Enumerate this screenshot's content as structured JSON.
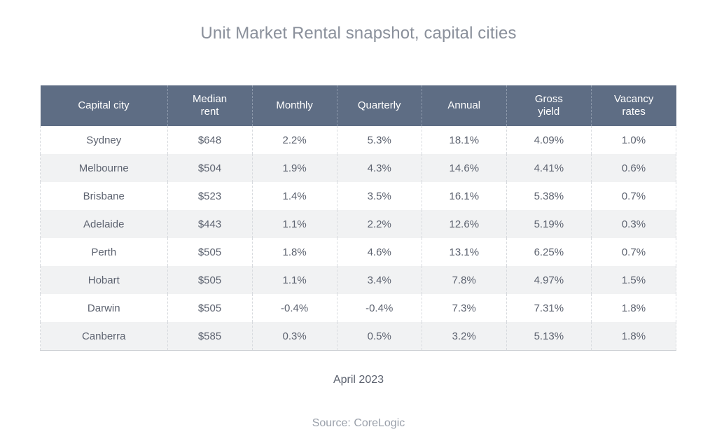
{
  "chart_data": {
    "type": "table",
    "title": "Unit Market Rental snapshot, capital cities",
    "columns": [
      "Capital city",
      "Median\nrent",
      "Monthly",
      "Quarterly",
      "Annual",
      "Gross\nyield",
      "Vacancy\nrates"
    ],
    "rows": [
      [
        "Sydney",
        "$648",
        "2.2%",
        "5.3%",
        "18.1%",
        "4.09%",
        "1.0%"
      ],
      [
        "Melbourne",
        "$504",
        "1.9%",
        "4.3%",
        "14.6%",
        "4.41%",
        "0.6%"
      ],
      [
        "Brisbane",
        "$523",
        "1.4%",
        "3.5%",
        "16.1%",
        "5.38%",
        "0.7%"
      ],
      [
        "Adelaide",
        "$443",
        "1.1%",
        "2.2%",
        "12.6%",
        "5.19%",
        "0.3%"
      ],
      [
        "Perth",
        "$505",
        "1.8%",
        "4.6%",
        "13.1%",
        "6.25%",
        "0.7%"
      ],
      [
        "Hobart",
        "$505",
        "1.1%",
        "3.4%",
        "7.8%",
        "4.97%",
        "1.5%"
      ],
      [
        "Darwin",
        "$505",
        "-0.4%",
        "-0.4%",
        "7.3%",
        "7.31%",
        "1.8%"
      ],
      [
        "Canberra",
        "$585",
        "0.3%",
        "0.5%",
        "3.2%",
        "5.13%",
        "1.8%"
      ]
    ],
    "date": "April 2023",
    "source": "Source: CoreLogic"
  },
  "colors": {
    "header_bg": "#5e6d84",
    "stripe_bg": "#f1f2f3",
    "title_text": "#8a909b"
  }
}
